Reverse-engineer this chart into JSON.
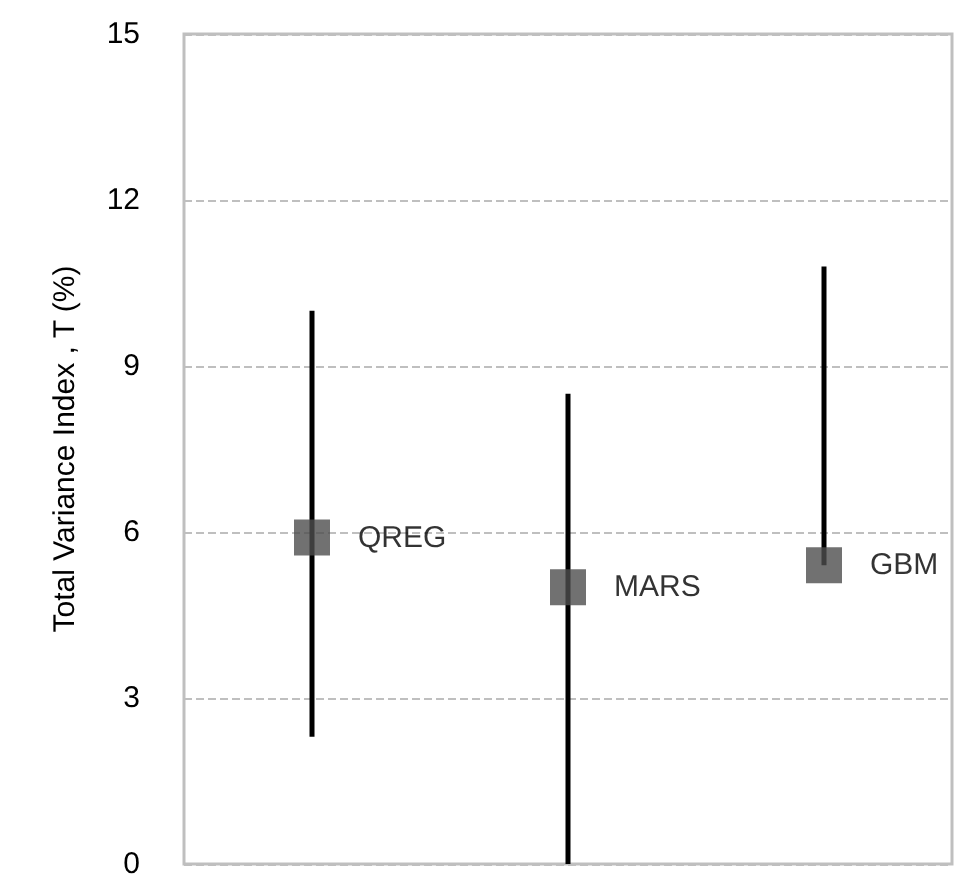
{
  "chart_data": {
    "type": "scatter",
    "ylabel": "Total Variance Index , T (%)",
    "categories": [
      null,
      null,
      null
    ],
    "values": [
      5.9,
      5.0,
      5.4
    ],
    "errors": [
      [
        2.3,
        10.0
      ],
      [
        0,
        8.5
      ],
      [
        5.4,
        10.8
      ]
    ],
    "value_labels": [
      "QREG",
      "MARS",
      "GBM"
    ],
    "color": "#4d4d4d",
    "marker": "square",
    "ylim": [
      0,
      15
    ],
    "yticks": [
      0,
      3,
      6,
      9,
      12,
      15
    ],
    "grid": "y",
    "tick_labels": "y"
  }
}
